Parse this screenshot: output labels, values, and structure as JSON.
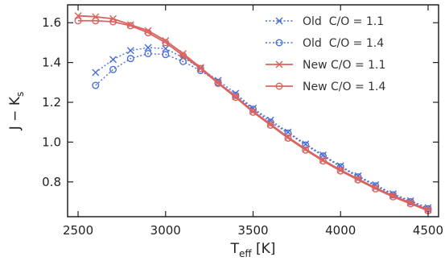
{
  "chart_data": {
    "type": "line",
    "title": "",
    "xlabel_main": "T",
    "xlabel_sub": "eff",
    "xlabel_unit": " [K]",
    "ylabel_main": "J − K",
    "ylabel_sub": "s",
    "xlim": [
      2440,
      4560
    ],
    "ylim": [
      0.625,
      1.69
    ],
    "xticks": [
      2500,
      3000,
      3500,
      4000,
      4500
    ],
    "yticks": [
      0.8,
      1.0,
      1.2,
      1.4,
      1.6
    ],
    "xtick_labels": [
      "2500",
      "3000",
      "3500",
      "4000",
      "4500"
    ],
    "ytick_labels": [
      "0.8",
      "1.0",
      "1.2",
      "1.4",
      "1.6"
    ],
    "grid": false,
    "legend_position": "top-right",
    "series": [
      {
        "name": "Old  C/O = 1.1",
        "color": "#4a6fd6",
        "style": "dotted",
        "marker": "x",
        "x": [
          2600,
          2700,
          2800,
          2900,
          3000,
          3100,
          3200,
          3300,
          3400,
          3500,
          3600,
          3700,
          3800,
          3900,
          4000,
          4100,
          4200,
          4300,
          4400,
          4500
        ],
        "y": [
          1.35,
          1.415,
          1.46,
          1.475,
          1.47,
          1.425,
          1.37,
          1.31,
          1.245,
          1.17,
          1.11,
          1.05,
          0.99,
          0.935,
          0.88,
          0.83,
          0.785,
          0.74,
          0.705,
          0.67
        ]
      },
      {
        "name": "Old  C/O = 1.4",
        "color": "#4a6fd6",
        "style": "dotted",
        "marker": "o",
        "x": [
          2600,
          2700,
          2800,
          2900,
          3000,
          3100,
          3200,
          3300,
          3400,
          3500,
          3600,
          3700,
          3800,
          3900,
          4000,
          4100,
          4200,
          4300,
          4400,
          4500
        ],
        "y": [
          1.285,
          1.365,
          1.42,
          1.445,
          1.44,
          1.405,
          1.36,
          1.3,
          1.235,
          1.165,
          1.1,
          1.045,
          0.985,
          0.93,
          0.875,
          0.825,
          0.78,
          0.735,
          0.7,
          0.665
        ]
      },
      {
        "name": "New C/O = 1.1",
        "color": "#d9645f",
        "style": "solid",
        "marker": "x",
        "x": [
          2500,
          2600,
          2700,
          2800,
          2900,
          3000,
          3100,
          3200,
          3300,
          3400,
          3500,
          3600,
          3700,
          3800,
          3900,
          4000,
          4100,
          4200,
          4300,
          4400,
          4500
        ],
        "y": [
          1.635,
          1.63,
          1.62,
          1.59,
          1.56,
          1.51,
          1.445,
          1.375,
          1.3,
          1.23,
          1.155,
          1.09,
          1.025,
          0.965,
          0.91,
          0.86,
          0.815,
          0.77,
          0.73,
          0.695,
          0.66
        ]
      },
      {
        "name": "New C/O = 1.4",
        "color": "#d9645f",
        "style": "solid",
        "marker": "o",
        "x": [
          2500,
          2600,
          2700,
          2800,
          2900,
          3000,
          3100,
          3200,
          3300,
          3400,
          3500,
          3600,
          3700,
          3800,
          3900,
          4000,
          4100,
          4200,
          4300,
          4400,
          4500
        ],
        "y": [
          1.61,
          1.61,
          1.605,
          1.585,
          1.55,
          1.5,
          1.435,
          1.37,
          1.295,
          1.225,
          1.15,
          1.085,
          1.02,
          0.96,
          0.905,
          0.855,
          0.81,
          0.765,
          0.725,
          0.69,
          0.655
        ]
      }
    ]
  }
}
